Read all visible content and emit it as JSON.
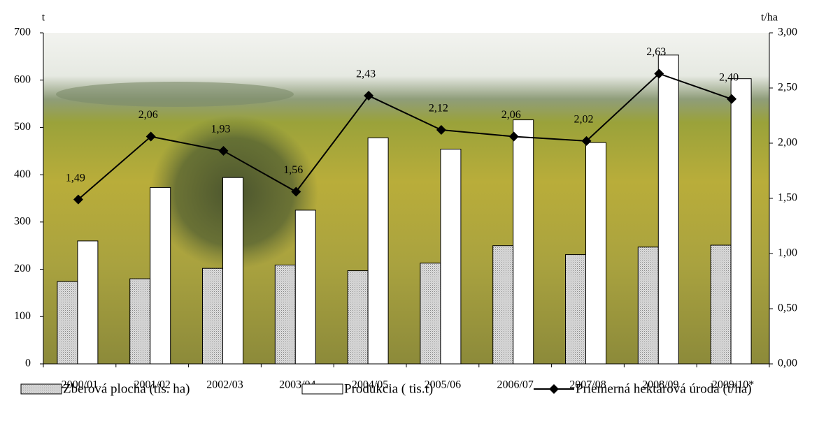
{
  "chart_data": {
    "type": "bar",
    "y_label": "t",
    "y2_label": "t/ha",
    "categories": [
      "2000/01",
      "2001/02",
      "2002/03",
      "2003/04",
      "2004/05",
      "2005/06",
      "2006/07",
      "2007/08",
      "2008/09",
      "2009/10*"
    ],
    "series": [
      {
        "name": "Zberová plocha (tis. ha)",
        "type": "bar",
        "axis": "y",
        "color": "#dcdcdc",
        "values": [
          174,
          180,
          202,
          209,
          197,
          213,
          250,
          231,
          247,
          251
        ]
      },
      {
        "name": "Produkcia ( tis.t)",
        "type": "bar",
        "axis": "y",
        "color": "#ffffff",
        "values": [
          260,
          373,
          394,
          325,
          478,
          454,
          516,
          468,
          653,
          603
        ]
      },
      {
        "name": "Priemerná hektárová úroda (t/ha)",
        "type": "line",
        "axis": "y2",
        "color": "#000000",
        "values": [
          1.49,
          2.06,
          1.93,
          1.56,
          2.43,
          2.12,
          2.06,
          2.02,
          2.63,
          2.4
        ],
        "value_labels": [
          "1,49",
          "2,06",
          "1,93",
          "1,56",
          "2,43",
          "2,12",
          "2,06",
          "2,02",
          "2,63",
          "2,40"
        ]
      }
    ],
    "ylim": [
      0,
      700
    ],
    "yticks": [
      0,
      100,
      200,
      300,
      400,
      500,
      600,
      700
    ],
    "y2lim": [
      0,
      3
    ],
    "y2ticks": [
      {
        "value": 0,
        "label": "0,00"
      },
      {
        "value": 0.5,
        "label": "0,50"
      },
      {
        "value": 1,
        "label": "1,00"
      },
      {
        "value": 1.5,
        "label": "1,50"
      },
      {
        "value": 2,
        "label": "2,00"
      },
      {
        "value": 2.5,
        "label": "2,50"
      },
      {
        "value": 3,
        "label": "3,00"
      }
    ],
    "grid": false,
    "legend": "bottom"
  }
}
